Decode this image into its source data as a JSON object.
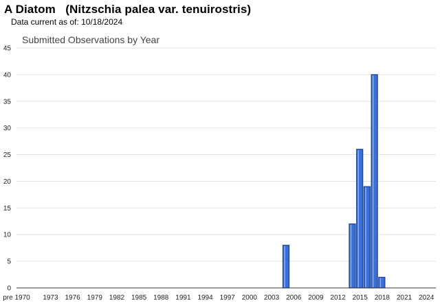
{
  "header": {
    "title": "A Diatom   (Nitzschia palea var. tenuirostris)",
    "data_current_label": "Data current as of:",
    "data_current_date": "10/18/2024"
  },
  "chart_data": {
    "type": "bar",
    "title": "Submitted Observations by Year",
    "xlabel": "",
    "ylabel": "",
    "ylim": [
      0,
      45
    ],
    "y_ticks": [
      0,
      5,
      10,
      15,
      20,
      25,
      30,
      35,
      40,
      45
    ],
    "x_tick_labels": [
      "pre 1970",
      "1973",
      "1976",
      "1979",
      "1982",
      "1985",
      "1988",
      "1991",
      "1994",
      "1997",
      "2000",
      "2003",
      "2006",
      "2009",
      "2012",
      "2015",
      "2018",
      "2021",
      "2024"
    ],
    "grid": true,
    "bar_color": "#3a6fd8",
    "bar_edge_color": "#1a3f8c",
    "categories": [
      "2005",
      "2014",
      "2015",
      "2016",
      "2017",
      "2018"
    ],
    "values": [
      8,
      12,
      26,
      19,
      40,
      2
    ]
  }
}
